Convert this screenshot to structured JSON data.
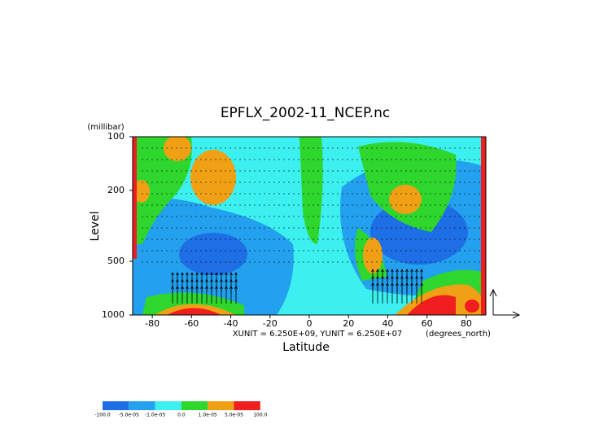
{
  "chart_data": {
    "type": "contour",
    "title": "EPFLX_2002-11_NCEP.nc",
    "y_unit_label": "(millibar)",
    "y_label": "Level",
    "x_label": "Latitude",
    "x_unit_label": "(degrees_north)",
    "annotation": "XUNIT = 6.250E+09, YUNIT = 6.250E+07",
    "xlim": [
      -90,
      90
    ],
    "xticks": [
      -80,
      -60,
      -40,
      -20,
      0,
      20,
      40,
      60,
      80
    ],
    "ylim": [
      1000,
      100
    ],
    "yticks": [
      100,
      200,
      500,
      1000
    ],
    "ylog": true,
    "levels": [
      {
        "value": -100,
        "label": "-100.0"
      },
      {
        "value": -5e-05,
        "label": "-5.0e-05"
      },
      {
        "value": -1e-05,
        "label": "-1.0e-05"
      },
      {
        "value": 0,
        "label": "0.0"
      },
      {
        "value": 1e-05,
        "label": "1.0e-05"
      },
      {
        "value": 5e-05,
        "label": "5.0e-05"
      },
      {
        "value": 100,
        "label": "100.0"
      }
    ],
    "colors": [
      "#1e6ee6",
      "#23a0ee",
      "#3cf0f0",
      "#2ed62e",
      "#f0a014",
      "#f01e1e"
    ]
  }
}
